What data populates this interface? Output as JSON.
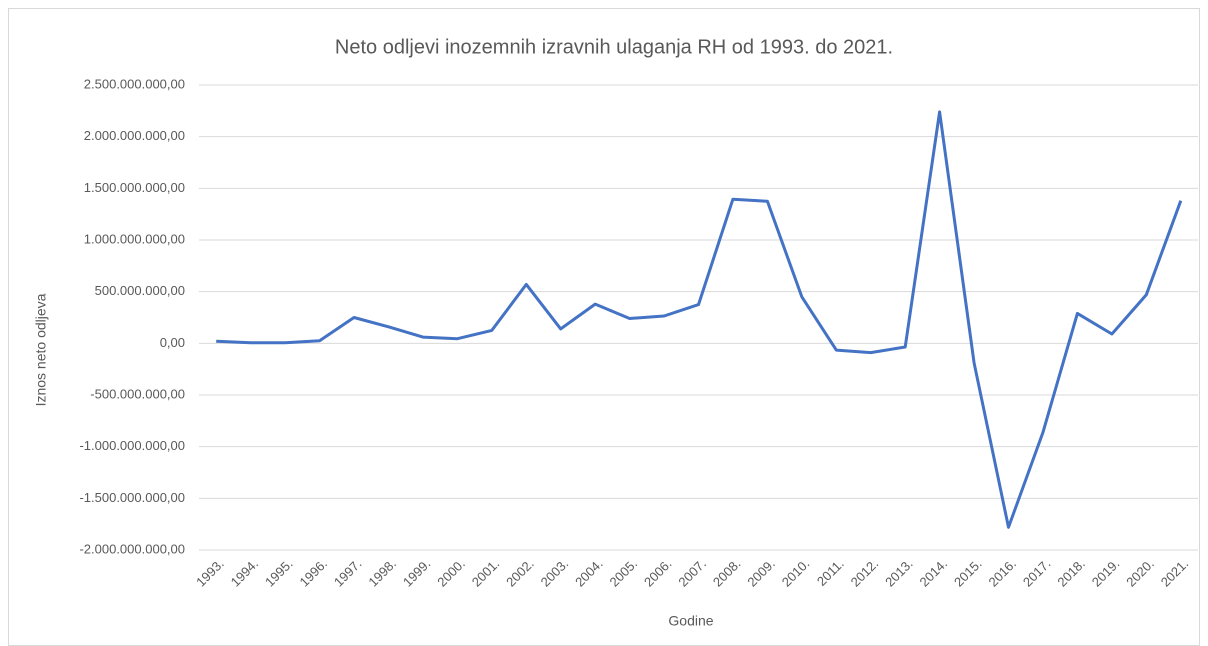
{
  "chart_data": {
    "type": "line",
    "title": "Neto odljevi inozemnih izravnih ulaganja RH od 1993. do 2021.",
    "x_label": "Godine",
    "y_label": "Iznos neto odljeva",
    "categories": [
      "1993.",
      "1994.",
      "1995.",
      "1996.",
      "1997.",
      "1998.",
      "1999.",
      "2000.",
      "2001.",
      "2002.",
      "2003.",
      "2004.",
      "2005.",
      "2006.",
      "2007.",
      "2008.",
      "2009.",
      "2010.",
      "2011.",
      "2012.",
      "2013.",
      "2014.",
      "2015.",
      "2016.",
      "2017.",
      "2018.",
      "2019.",
      "2020.",
      "2021."
    ],
    "series": [
      {
        "name": "Iznos neto odljeva",
        "color": "#4472c4",
        "values": [
          20000000,
          5000000,
          5000000,
          25000000,
          250000000,
          160000000,
          60000000,
          45000000,
          125000000,
          570000000,
          140000000,
          380000000,
          240000000,
          265000000,
          375000000,
          1395000000,
          1375000000,
          450000000,
          -65000000,
          -90000000,
          -35000000,
          2240000000,
          -190000000,
          -1780000000,
          -860000000,
          290000000,
          90000000,
          470000000,
          1380000000
        ]
      }
    ],
    "ylim": [
      -2000000000,
      2500000000
    ],
    "yticks": [
      {
        "value": -2000000000,
        "label": "-2.000.000.000,00"
      },
      {
        "value": -1500000000,
        "label": "-1.500.000.000,00"
      },
      {
        "value": -1000000000,
        "label": "-1.000.000.000,00"
      },
      {
        "value": -500000000,
        "label": "-500.000.000,00"
      },
      {
        "value": 0,
        "label": "0,00"
      },
      {
        "value": 500000000,
        "label": "500.000.000,00"
      },
      {
        "value": 1000000000,
        "label": "1.000.000.000,00"
      },
      {
        "value": 1500000000,
        "label": "1.500.000.000,00"
      },
      {
        "value": 2000000000,
        "label": "2.000.000.000,00"
      },
      {
        "value": 2500000000,
        "label": "2.500.000.000,00"
      }
    ],
    "grid": true
  }
}
